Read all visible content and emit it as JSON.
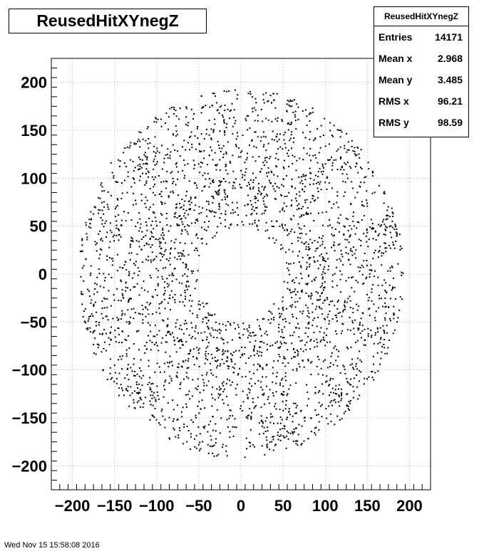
{
  "chart_data": {
    "type": "scatter",
    "title": "ReusedHitXYnegZ",
    "xlabel": "",
    "ylabel": "",
    "xlim": [
      -225,
      225
    ],
    "ylim": [
      -225,
      225
    ],
    "xticks": [
      -200,
      -150,
      -100,
      -50,
      0,
      50,
      100,
      150,
      200
    ],
    "yticks": [
      -200,
      -150,
      -100,
      -50,
      0,
      50,
      100,
      150,
      200
    ],
    "xtick_labels": [
      "−200",
      "−150",
      "−100",
      "−50",
      "0",
      "50",
      "100",
      "150",
      "200"
    ],
    "ytick_labels": [
      "−200",
      "−150",
      "−100",
      "−50",
      "0",
      "50",
      "100",
      "150",
      "200"
    ],
    "grid": true,
    "marker_color": "#000000",
    "distribution": {
      "shape": "annulus",
      "inner_radius": 50,
      "outer_radius": 193,
      "entries": 14171
    },
    "legend": "top-right"
  },
  "stats": {
    "header": "ReusedHitXYnegZ",
    "rows": [
      {
        "label": "Entries",
        "value": "14171"
      },
      {
        "label": "Mean x",
        "value": "2.968"
      },
      {
        "label": "Mean y",
        "value": "3.485"
      },
      {
        "label": "RMS x",
        "value": "96.21"
      },
      {
        "label": "RMS y",
        "value": "98.59"
      }
    ]
  },
  "footer": {
    "timestamp": "Wed Nov 15 15:58:08 2016"
  }
}
